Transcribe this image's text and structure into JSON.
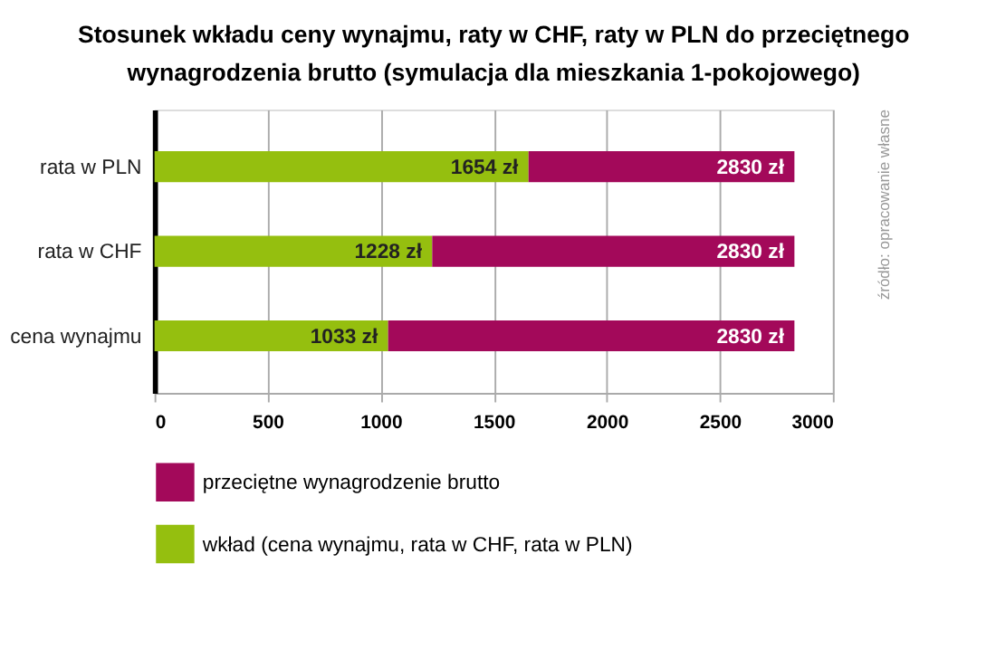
{
  "chart_data": {
    "type": "bar",
    "orientation": "horizontal",
    "stacked": true,
    "title": "Stosunek wkładu ceny wynajmu, raty w CHF, raty w PLN do przeciętnego wynagrodzenia brutto (symulacja dla mieszkania 1-pokojowego)",
    "categories": [
      "rata w PLN",
      "rata w CHF",
      "cena wynajmu"
    ],
    "series": [
      {
        "name": "wkład (cena wynajmu, rata w CHF, rata w PLN)",
        "color": "#95bf0f",
        "values": [
          1654,
          1228,
          1033
        ],
        "value_labels": [
          "1654 zł",
          "1228 zł",
          "1033 zł"
        ]
      },
      {
        "name": "przeciętne wynagrodzenie brutto",
        "color": "#a3095a",
        "values": [
          1176,
          1602,
          1797
        ]
      }
    ],
    "totals": [
      "2830 zł",
      "2830 zł",
      "2830 zł"
    ],
    "xlim": [
      0,
      3000
    ],
    "xticks": [
      0,
      500,
      1000,
      1500,
      2000,
      2500,
      3000
    ],
    "grid": "x",
    "legend": "bottom",
    "annotations": [
      "źródło: opracowanie własne"
    ]
  }
}
